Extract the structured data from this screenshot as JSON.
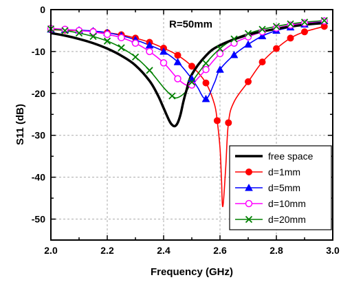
{
  "chart_data": {
    "type": "line",
    "xlabel": "Frequency (GHz)",
    "ylabel": "S11 (dB)",
    "xlim": [
      2.0,
      3.0
    ],
    "ylim": [
      -55,
      0
    ],
    "x_ticks": [
      2.0,
      2.2,
      2.4,
      2.6,
      2.8,
      3.0
    ],
    "x_tick_labels": [
      "2.0",
      "2.2",
      "2.4",
      "2.6",
      "2.8",
      "3.0"
    ],
    "y_ticks": [
      0,
      -10,
      -20,
      -30,
      -40,
      -50
    ],
    "y_tick_labels": [
      "0",
      "-10",
      "-20",
      "-30",
      "-40",
      "-50"
    ],
    "grid": "dashed",
    "annotation": "R=50mm",
    "legend_position": "bottom-right",
    "series": [
      {
        "name": "free space",
        "color": "#000000",
        "marker": "none",
        "x": [
          2.0,
          2.05,
          2.1,
          2.15,
          2.2,
          2.25,
          2.3,
          2.35,
          2.38,
          2.4,
          2.42,
          2.43,
          2.44,
          2.45,
          2.46,
          2.47,
          2.48,
          2.5,
          2.55,
          2.6,
          2.7,
          2.8,
          2.9,
          2.97
        ],
        "y": [
          -5.6,
          -6.2,
          -7.0,
          -8.0,
          -9.3,
          -11.0,
          -13.3,
          -17.0,
          -20.5,
          -23.5,
          -26.5,
          -27.5,
          -27.8,
          -27.0,
          -25.0,
          -22.0,
          -19.5,
          -15.5,
          -11.0,
          -8.5,
          -6.0,
          -4.6,
          -3.6,
          -3.2
        ]
      },
      {
        "name": "d=1mm",
        "color": "#ff0000",
        "marker": "circle",
        "x": [
          2.0,
          2.05,
          2.1,
          2.15,
          2.2,
          2.25,
          2.3,
          2.35,
          2.4,
          2.45,
          2.5,
          2.55,
          2.58,
          2.59,
          2.6,
          2.605,
          2.61,
          2.62,
          2.63,
          2.65,
          2.7,
          2.75,
          2.8,
          2.85,
          2.9,
          2.97
        ],
        "y": [
          -4.8,
          -4.9,
          -5.0,
          -5.2,
          -5.5,
          -6.0,
          -6.8,
          -7.8,
          -9.2,
          -10.9,
          -13.5,
          -17.5,
          -22.5,
          -26.5,
          -33.0,
          -40.0,
          -47.0,
          -38.0,
          -27.0,
          -22.0,
          -17.2,
          -12.5,
          -9.3,
          -6.8,
          -5.3,
          -4.0
        ],
        "marker_x": [
          2.0,
          2.05,
          2.1,
          2.15,
          2.2,
          2.25,
          2.3,
          2.35,
          2.4,
          2.45,
          2.5,
          2.55,
          2.59,
          2.63,
          2.7,
          2.75,
          2.8,
          2.85,
          2.9,
          2.97
        ],
        "marker_y": [
          -4.8,
          -4.9,
          -5.0,
          -5.2,
          -5.5,
          -6.0,
          -6.8,
          -7.8,
          -9.2,
          -10.9,
          -13.5,
          -17.5,
          -26.5,
          -27.0,
          -17.2,
          -12.5,
          -9.3,
          -6.8,
          -5.3,
          -4.0
        ]
      },
      {
        "name": "d=5mm",
        "color": "#0000ff",
        "marker": "triangle",
        "x": [
          2.0,
          2.05,
          2.1,
          2.15,
          2.2,
          2.25,
          2.3,
          2.35,
          2.4,
          2.45,
          2.5,
          2.52,
          2.55,
          2.58,
          2.6,
          2.65,
          2.7,
          2.75,
          2.8,
          2.85,
          2.9,
          2.97
        ],
        "y": [
          -4.7,
          -4.8,
          -4.9,
          -5.1,
          -5.5,
          -6.2,
          -7.2,
          -8.5,
          -10.0,
          -12.5,
          -16.5,
          -18.5,
          -21.3,
          -17.5,
          -14.3,
          -10.8,
          -8.3,
          -6.3,
          -5.0,
          -4.2,
          -3.5,
          -2.7
        ],
        "marker_x": [
          2.0,
          2.05,
          2.1,
          2.15,
          2.2,
          2.25,
          2.3,
          2.35,
          2.4,
          2.45,
          2.5,
          2.55,
          2.6,
          2.65,
          2.7,
          2.75,
          2.8,
          2.85,
          2.9,
          2.97
        ],
        "marker_y": [
          -4.7,
          -4.8,
          -4.9,
          -5.1,
          -5.5,
          -6.2,
          -7.2,
          -8.5,
          -10.0,
          -12.5,
          -16.5,
          -21.3,
          -14.3,
          -10.8,
          -8.3,
          -6.3,
          -5.0,
          -4.2,
          -3.5,
          -2.7
        ]
      },
      {
        "name": "d=10mm",
        "color": "#ff00ff",
        "marker": "open-circle",
        "x": [
          2.0,
          2.05,
          2.1,
          2.15,
          2.2,
          2.25,
          2.3,
          2.35,
          2.4,
          2.45,
          2.48,
          2.5,
          2.52,
          2.55,
          2.6,
          2.65,
          2.7,
          2.75,
          2.8,
          2.85,
          2.9,
          2.97
        ],
        "y": [
          -4.5,
          -4.7,
          -5.0,
          -5.3,
          -5.9,
          -6.7,
          -8.0,
          -10.0,
          -12.7,
          -16.5,
          -18.0,
          -18.0,
          -16.5,
          -14.3,
          -10.5,
          -8.0,
          -6.5,
          -5.3,
          -4.4,
          -3.7,
          -3.2,
          -2.7
        ],
        "marker_x": [
          2.0,
          2.05,
          2.1,
          2.15,
          2.2,
          2.25,
          2.3,
          2.35,
          2.4,
          2.45,
          2.5,
          2.55,
          2.6,
          2.65,
          2.7,
          2.75,
          2.8,
          2.85,
          2.9,
          2.97
        ],
        "marker_y": [
          -4.5,
          -4.7,
          -5.0,
          -5.3,
          -5.9,
          -6.7,
          -8.0,
          -10.0,
          -12.7,
          -16.5,
          -18.0,
          -14.3,
          -10.5,
          -8.0,
          -6.5,
          -5.3,
          -4.4,
          -3.7,
          -3.2,
          -2.7
        ]
      },
      {
        "name": "d=20mm",
        "color": "#008000",
        "marker": "x",
        "x": [
          2.0,
          2.05,
          2.1,
          2.15,
          2.2,
          2.25,
          2.3,
          2.35,
          2.4,
          2.43,
          2.45,
          2.48,
          2.5,
          2.55,
          2.6,
          2.65,
          2.7,
          2.75,
          2.8,
          2.85,
          2.9,
          2.97
        ],
        "y": [
          -4.6,
          -5.0,
          -5.6,
          -6.4,
          -7.5,
          -9.1,
          -11.3,
          -14.5,
          -18.6,
          -20.6,
          -21.0,
          -19.5,
          -17.3,
          -12.8,
          -9.3,
          -7.0,
          -5.7,
          -4.7,
          -4.0,
          -3.4,
          -3.0,
          -2.6
        ],
        "marker_x": [
          2.0,
          2.05,
          2.1,
          2.15,
          2.2,
          2.25,
          2.3,
          2.35,
          2.43,
          2.5,
          2.55,
          2.6,
          2.65,
          2.7,
          2.75,
          2.8,
          2.85,
          2.9,
          2.97
        ],
        "marker_y": [
          -4.6,
          -5.0,
          -5.6,
          -6.4,
          -7.5,
          -9.1,
          -11.3,
          -14.5,
          -20.6,
          -17.3,
          -12.8,
          -9.3,
          -7.0,
          -5.7,
          -4.7,
          -4.0,
          -3.4,
          -3.0,
          -2.6
        ]
      }
    ]
  }
}
